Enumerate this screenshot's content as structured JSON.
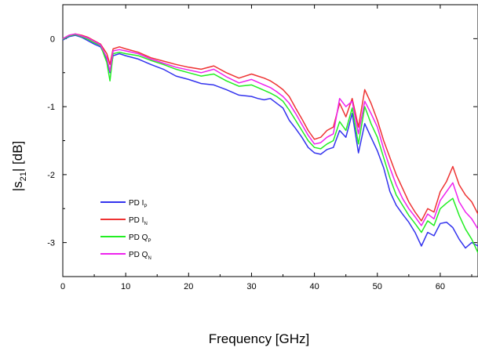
{
  "chart_data": {
    "type": "line",
    "xlabel": "Frequency [GHz]",
    "ylabel_main": "|s",
    "ylabel_sub": "21",
    "ylabel_tail": "|  [dB]",
    "xlim": [
      0,
      66
    ],
    "ylim": [
      -3.5,
      0.5
    ],
    "x_ticks": [
      0,
      10,
      20,
      30,
      40,
      50,
      60
    ],
    "y_ticks": [
      0,
      -1,
      -2,
      -3
    ],
    "x_tick_labels": [
      "0",
      "10",
      "20",
      "30",
      "40",
      "50",
      "60"
    ],
    "y_tick_labels": [
      "0",
      "-1",
      "-2",
      "-3"
    ],
    "grid": false,
    "legend_position": "lower-left",
    "series": [
      {
        "name": "PD I",
        "sub": "P",
        "color": "#3333ee",
        "x": [
          0,
          1,
          2,
          3,
          4,
          5,
          6,
          7,
          7.5,
          8,
          9,
          10,
          12,
          14,
          16,
          18,
          20,
          22,
          24,
          26,
          28,
          30,
          31,
          32,
          33,
          34,
          35,
          36,
          37,
          38,
          39,
          40,
          41,
          42,
          43,
          44,
          45,
          46,
          47,
          48,
          49,
          50,
          51,
          52,
          53,
          54,
          55,
          56,
          57,
          58,
          59,
          60,
          61,
          62,
          63,
          64,
          65,
          66
        ],
        "y": [
          -0.02,
          0.03,
          0.05,
          0.02,
          -0.03,
          -0.08,
          -0.12,
          -0.3,
          -0.5,
          -0.25,
          -0.22,
          -0.25,
          -0.3,
          -0.38,
          -0.45,
          -0.55,
          -0.6,
          -0.66,
          -0.68,
          -0.75,
          -0.83,
          -0.85,
          -0.88,
          -0.9,
          -0.88,
          -0.95,
          -1.02,
          -1.2,
          -1.32,
          -1.45,
          -1.6,
          -1.68,
          -1.7,
          -1.63,
          -1.6,
          -1.35,
          -1.45,
          -1.1,
          -1.68,
          -1.25,
          -1.45,
          -1.65,
          -1.9,
          -2.25,
          -2.45,
          -2.58,
          -2.7,
          -2.85,
          -3.05,
          -2.85,
          -2.9,
          -2.72,
          -2.7,
          -2.78,
          -2.95,
          -3.08,
          -3.0,
          -3.05
        ]
      },
      {
        "name": "PD I",
        "sub": "N",
        "color": "#ee3333",
        "x": [
          0,
          1,
          2,
          3,
          4,
          5,
          6,
          7,
          7.5,
          8,
          9,
          10,
          12,
          14,
          16,
          18,
          20,
          22,
          24,
          26,
          28,
          30,
          31,
          32,
          33,
          34,
          35,
          36,
          37,
          38,
          39,
          40,
          41,
          42,
          43,
          44,
          45,
          46,
          47,
          48,
          49,
          50,
          51,
          52,
          53,
          54,
          55,
          56,
          57,
          58,
          59,
          60,
          61,
          62,
          63,
          64,
          65,
          66
        ],
        "y": [
          0.0,
          0.05,
          0.07,
          0.05,
          0.02,
          -0.03,
          -0.08,
          -0.22,
          -0.38,
          -0.15,
          -0.12,
          -0.15,
          -0.2,
          -0.28,
          -0.33,
          -0.38,
          -0.42,
          -0.45,
          -0.4,
          -0.5,
          -0.58,
          -0.52,
          -0.55,
          -0.58,
          -0.62,
          -0.68,
          -0.75,
          -0.85,
          -1.02,
          -1.18,
          -1.35,
          -1.48,
          -1.45,
          -1.35,
          -1.3,
          -0.95,
          -1.15,
          -0.88,
          -1.3,
          -0.75,
          -0.95,
          -1.2,
          -1.5,
          -1.75,
          -2.0,
          -2.2,
          -2.4,
          -2.55,
          -2.68,
          -2.5,
          -2.55,
          -2.25,
          -2.1,
          -1.88,
          -2.15,
          -2.3,
          -2.4,
          -2.58
        ]
      },
      {
        "name": "PD Q",
        "sub": "P",
        "color": "#22ee22",
        "x": [
          0,
          1,
          2,
          3,
          4,
          5,
          6,
          7,
          7.5,
          8,
          9,
          10,
          12,
          14,
          16,
          18,
          20,
          22,
          24,
          26,
          28,
          30,
          31,
          32,
          33,
          34,
          35,
          36,
          37,
          38,
          39,
          40,
          41,
          42,
          43,
          44,
          45,
          46,
          47,
          48,
          49,
          50,
          51,
          52,
          53,
          54,
          55,
          56,
          57,
          58,
          59,
          60,
          61,
          62,
          63,
          64,
          65,
          66
        ],
        "y": [
          -0.01,
          0.04,
          0.06,
          0.03,
          -0.01,
          -0.06,
          -0.1,
          -0.35,
          -0.62,
          -0.22,
          -0.2,
          -0.22,
          -0.25,
          -0.32,
          -0.38,
          -0.45,
          -0.5,
          -0.55,
          -0.52,
          -0.62,
          -0.7,
          -0.68,
          -0.72,
          -0.76,
          -0.8,
          -0.85,
          -0.92,
          -1.05,
          -1.2,
          -1.35,
          -1.5,
          -1.6,
          -1.62,
          -1.55,
          -1.5,
          -1.22,
          -1.35,
          -1.02,
          -1.55,
          -1.0,
          -1.25,
          -1.45,
          -1.75,
          -2.05,
          -2.3,
          -2.45,
          -2.6,
          -2.72,
          -2.85,
          -2.68,
          -2.75,
          -2.5,
          -2.42,
          -2.35,
          -2.6,
          -2.8,
          -2.95,
          -3.15
        ]
      },
      {
        "name": "PD Q",
        "sub": "N",
        "color": "#ee22ee",
        "x": [
          0,
          1,
          2,
          3,
          4,
          5,
          6,
          7,
          7.5,
          8,
          9,
          10,
          12,
          14,
          16,
          18,
          20,
          22,
          24,
          26,
          28,
          30,
          31,
          32,
          33,
          34,
          35,
          36,
          37,
          38,
          39,
          40,
          41,
          42,
          43,
          44,
          45,
          46,
          47,
          48,
          49,
          50,
          51,
          52,
          53,
          54,
          55,
          56,
          57,
          58,
          59,
          60,
          61,
          62,
          63,
          64,
          65,
          66
        ],
        "y": [
          0.0,
          0.05,
          0.07,
          0.04,
          0.01,
          -0.04,
          -0.09,
          -0.28,
          -0.48,
          -0.18,
          -0.16,
          -0.18,
          -0.22,
          -0.3,
          -0.36,
          -0.42,
          -0.46,
          -0.5,
          -0.45,
          -0.56,
          -0.65,
          -0.6,
          -0.64,
          -0.68,
          -0.72,
          -0.78,
          -0.85,
          -0.95,
          -1.1,
          -1.26,
          -1.42,
          -1.55,
          -1.53,
          -1.45,
          -1.4,
          -0.88,
          -1.0,
          -0.92,
          -1.4,
          -0.92,
          -1.1,
          -1.3,
          -1.62,
          -1.9,
          -2.15,
          -2.35,
          -2.5,
          -2.62,
          -2.75,
          -2.58,
          -2.65,
          -2.38,
          -2.25,
          -2.12,
          -2.4,
          -2.55,
          -2.65,
          -2.8
        ]
      }
    ]
  }
}
